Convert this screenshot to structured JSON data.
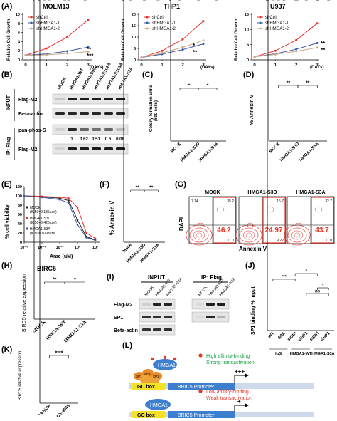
{
  "panels": {
    "A": {
      "letter": "(A)",
      "charts": [
        {
          "title": "MOLM13",
          "ylabel": "Relative Cell Growth",
          "xlabel": "(DAYs)",
          "xticks": [
            "0",
            "1",
            "2",
            "3"
          ],
          "yticks": [
            "0",
            "2",
            "4",
            "6",
            "8",
            "10"
          ],
          "legend": [
            "shCtrl",
            "shHMGA1-1",
            "shHMGA1-2"
          ],
          "sig": [
            "**",
            "***"
          ]
        },
        {
          "title": "THP1",
          "ylabel": "Relative Cell Growth",
          "xlabel": "(DAYs)",
          "xticks": [
            "0",
            "1",
            "2",
            "3"
          ],
          "yticks": [
            "0",
            "5",
            "10",
            "15",
            "20"
          ],
          "legend": [
            "shCtrl",
            "shHMGA1-1",
            "shHMGA1-2"
          ],
          "sig": [
            "*",
            "**"
          ]
        },
        {
          "title": "U937",
          "ylabel": "Relative Cell Growth",
          "xlabel": "(DAYs)",
          "xticks": [
            "0",
            "1",
            "2",
            "3"
          ],
          "yticks": [
            "0",
            "5",
            "10",
            "15"
          ],
          "legend": [
            "shCtrl",
            "shHMGA1-1",
            "shHMGA1-2"
          ],
          "sig": [
            "**",
            "**"
          ]
        }
      ]
    },
    "B": {
      "letter": "(B)",
      "lanes": [
        "MOCK",
        "HMGA1-WT",
        "HMGA1-S99A",
        "HMGA1-S102A",
        "HMGA1-S103A",
        "HMGA1-S3A"
      ],
      "input_label": "INPUT",
      "ip_label": "IP: Flag",
      "bands": [
        "Flag-M2",
        "Beta-actin",
        "pan-phos-S",
        "Flag-M2"
      ],
      "quant": [
        "1",
        "0.62",
        "0.51",
        "0.6",
        "0.08"
      ]
    },
    "C": {
      "letter": "(C)",
      "ylabel": "Colony formation units",
      "ylabel2": "(500 cells)",
      "yticks": [
        "0",
        "50",
        "100",
        "150"
      ],
      "categories": [
        "MOCK",
        "HMGA1-S3D",
        "HMGA1-S3A"
      ],
      "sig": [
        "*",
        "*"
      ]
    },
    "D": {
      "letter": "(D)",
      "ylabel": "% Annexin V",
      "yticks": [
        "0",
        "10",
        "20",
        "30",
        "40"
      ],
      "categories": [
        "MOCK",
        "HMGA1-S3D",
        "HMGA1-S3A"
      ],
      "sig": [
        "**",
        "**"
      ]
    },
    "E": {
      "letter": "(E)",
      "ylabel": "% cell viability",
      "xlabel": "Arac (uM)",
      "yticks": [
        "0",
        "20",
        "40",
        "60",
        "80",
        "100",
        "120"
      ],
      "xticks": [
        "10⁻⁶",
        "10⁻⁴",
        "10⁻²",
        "10⁰",
        "10²"
      ],
      "legend": [
        {
          "name": "MOCK",
          "ic": "(IC50=0.135 uM)"
        },
        {
          "name": "HMGA1-S3D",
          "ic": "(IC50=0.426 uM)"
        },
        {
          "name": "HMGA1-S3A",
          "ic": "(IC50=0.093uM)"
        }
      ]
    },
    "F": {
      "letter": "(F)",
      "ylabel": "% Annexin V",
      "yticks": [
        "0",
        "10",
        "20",
        "30",
        "40",
        "50"
      ],
      "categories": [
        "Mock",
        "HMGA1-S3D",
        "HMGA1-S3A"
      ],
      "sig": [
        "**",
        "**"
      ]
    },
    "G": {
      "letter": "(G)",
      "ylabel": "DAPI",
      "xlabel": "Annexin V",
      "plots": [
        {
          "title": "MOCK",
          "ul": "7.14",
          "ur": "35.2",
          "big": "46.2",
          "lr": "11.0"
        },
        {
          "title": "HMGA1-S3D",
          "ul": "",
          "ur": "15.7",
          "big": "24.97",
          "lr": "9.22"
        },
        {
          "title": "HMGA1-S3A",
          "ul": "",
          "ur": "32.7",
          "big": "43.7",
          "lr": "11.0"
        }
      ]
    },
    "H": {
      "letter": "(H)",
      "title": "BIRC5",
      "ylabel": "BIRC5 relative expression",
      "yticks": [
        "0",
        "1",
        "2",
        "3"
      ],
      "categories": [
        "MOCK",
        "HMGA-WT",
        "HMGA1-S3A"
      ],
      "sig": [
        "**",
        "*"
      ]
    },
    "I": {
      "letter": "(I)",
      "input_label": "INPUT",
      "ip_label": "IP: Flag",
      "lanes": [
        "MOCK",
        "HMGA1-WT",
        "HMGA1-S3A",
        "MOCK",
        "HMGA1-WT",
        "HMGA1-S3A"
      ],
      "bands": [
        "Flag-M2",
        "SP1",
        "Beta-actin"
      ]
    },
    "J": {
      "letter": "(J)",
      "ylabel": "SP1 binding % input",
      "yticks": [
        "0.0",
        "0.2",
        "0.4",
        "0.6",
        "0.8"
      ],
      "categories": [
        "WT",
        "S3A",
        "siCtrl",
        "siSP1",
        "siCtrl",
        "siSP1"
      ],
      "groups": [
        "IgG",
        "HMGA1-WT",
        "HMGA1-S3A"
      ],
      "sig": [
        "***",
        "*",
        "ns",
        "*"
      ]
    },
    "K": {
      "letter": "(K)",
      "ylabel": "BIRC5 relative expression",
      "yticks": [
        "0.0",
        "0.5",
        "1.0",
        "1.5"
      ],
      "categories": [
        "Vehicle",
        "CX-4945"
      ],
      "sig": [
        "****"
      ]
    },
    "L": {
      "letter": "(L)",
      "top_text1": "High affinity-binding",
      "top_text2": "Strong transactivation",
      "bottom_text1": "Low affinity-binding",
      "bottom_text2": "Weak transactivation",
      "protein": "HMGA1",
      "gcbox": "GC box",
      "promoter": "BRIC5 Promoter",
      "sp1": "SP1",
      "plus_strong": "+++",
      "plus_weak": "+"
    }
  },
  "chart_data": [
    {
      "type": "line",
      "title": "MOLM13",
      "ylabel": "Relative Cell Growth",
      "xlabel": "(DAYs)",
      "x": [
        0,
        1,
        2,
        3
      ],
      "ylim": [
        0,
        10
      ],
      "series": [
        {
          "name": "shCtrl",
          "values": [
            1,
            2.5,
            5,
            8.8
          ],
          "color": "#e8312f"
        },
        {
          "name": "shHMGA1-1",
          "values": [
            1,
            1.3,
            1.9,
            2.8
          ],
          "color": "#3a58a8"
        },
        {
          "name": "shHMGA1-2",
          "values": [
            1,
            1.1,
            1.4,
            1.8
          ],
          "color": "#c9a98a"
        }
      ]
    },
    {
      "type": "line",
      "title": "THP1",
      "ylabel": "Relative Cell Growth",
      "xlabel": "(DAYs)",
      "x": [
        0,
        1,
        2,
        3
      ],
      "ylim": [
        0,
        20
      ],
      "series": [
        {
          "name": "shCtrl",
          "values": [
            1,
            4,
            9,
            17
          ],
          "color": "#e8312f"
        },
        {
          "name": "shHMGA1-1",
          "values": [
            1,
            2.5,
            4.5,
            7
          ],
          "color": "#3a58a8"
        },
        {
          "name": "shHMGA1-2",
          "values": [
            1,
            3,
            5.5,
            8.5
          ],
          "color": "#c9a98a"
        }
      ]
    },
    {
      "type": "line",
      "title": "U937",
      "ylabel": "Relative Cell Growth",
      "xlabel": "(DAYs)",
      "x": [
        0,
        1,
        2,
        3
      ],
      "ylim": [
        0,
        15
      ],
      "series": [
        {
          "name": "shCtrl",
          "values": [
            1,
            3,
            6.5,
            12
          ],
          "color": "#e8312f"
        },
        {
          "name": "shHMGA1-1",
          "values": [
            1,
            2,
            3.5,
            5.5
          ],
          "color": "#3a58a8"
        },
        {
          "name": "shHMGA1-2",
          "values": [
            1,
            1.8,
            2.8,
            4
          ],
          "color": "#c9a98a"
        }
      ]
    },
    {
      "type": "bar",
      "ylabel": "Colony formation units (500 cells)",
      "ylim": [
        0,
        150
      ],
      "categories": [
        "MOCK",
        "HMGA1-S3D",
        "HMGA1-S3A"
      ],
      "values": [
        83,
        120,
        92
      ],
      "colors": [
        "#222222",
        "#e8312f",
        "#3a58a8"
      ]
    },
    {
      "type": "bar",
      "ylabel": "% Annexin V",
      "ylim": [
        0,
        40
      ],
      "categories": [
        "MOCK",
        "HMGA1-S3D",
        "HMGA1-S3A"
      ],
      "values": [
        31,
        15,
        27
      ],
      "colors": [
        "#222222",
        "#e8312f",
        "#3a58a8"
      ]
    },
    {
      "type": "line",
      "ylabel": "% cell viability",
      "xlabel": "Arac (uM)",
      "ylim": [
        0,
        120
      ],
      "x": [
        -6,
        -4,
        -2,
        -1,
        0,
        1,
        2
      ],
      "series": [
        {
          "name": "MOCK",
          "values": [
            100,
            98,
            95,
            90,
            48,
            12,
            5
          ],
          "color": "#222222"
        },
        {
          "name": "HMGA1-S3D",
          "values": [
            100,
            99,
            97,
            95,
            75,
            20,
            8
          ],
          "color": "#e8312f"
        },
        {
          "name": "HMGA1-S3A",
          "values": [
            100,
            97,
            92,
            85,
            38,
            10,
            4
          ],
          "color": "#3a58a8"
        }
      ]
    },
    {
      "type": "bar",
      "ylabel": "% Annexin V",
      "ylim": [
        0,
        50
      ],
      "categories": [
        "Mock",
        "HMGA1-S3D",
        "HMGA1-S3A"
      ],
      "values": [
        45,
        24,
        42
      ],
      "colors": [
        "#222222",
        "#e8312f",
        "#3a58a8"
      ]
    },
    {
      "type": "bar",
      "title": "BIRC5",
      "ylabel": "BIRC5 relative expression",
      "ylim": [
        0,
        3
      ],
      "categories": [
        "MOCK",
        "HMGA-WT",
        "HMGA1-S3A"
      ],
      "values": [
        1.0,
        2.7,
        1.25
      ],
      "colors": [
        "#222222",
        "#e8312f",
        "#3a58a8"
      ]
    },
    {
      "type": "bar",
      "ylabel": "SP1 binding % input",
      "ylim": [
        0,
        0.8
      ],
      "categories": [
        "WT",
        "S3A",
        "siCtrl",
        "siSP1",
        "siCtrl",
        "siSP1"
      ],
      "values": [
        0.03,
        0.02,
        0.72,
        0.22,
        0.35,
        0.18
      ],
      "colors": [
        "#222222",
        "#e8312f",
        "#3a58a8",
        "#c9b83a",
        "#e8722f",
        "#8a2f9a"
      ]
    },
    {
      "type": "bar",
      "ylabel": "BIRC5 relative expression",
      "ylim": [
        0,
        1.5
      ],
      "categories": [
        "Vehicle",
        "CX-4945"
      ],
      "values": [
        1.0,
        0.4
      ],
      "colors": [
        "#e8312f",
        "#3a58a8"
      ]
    }
  ]
}
